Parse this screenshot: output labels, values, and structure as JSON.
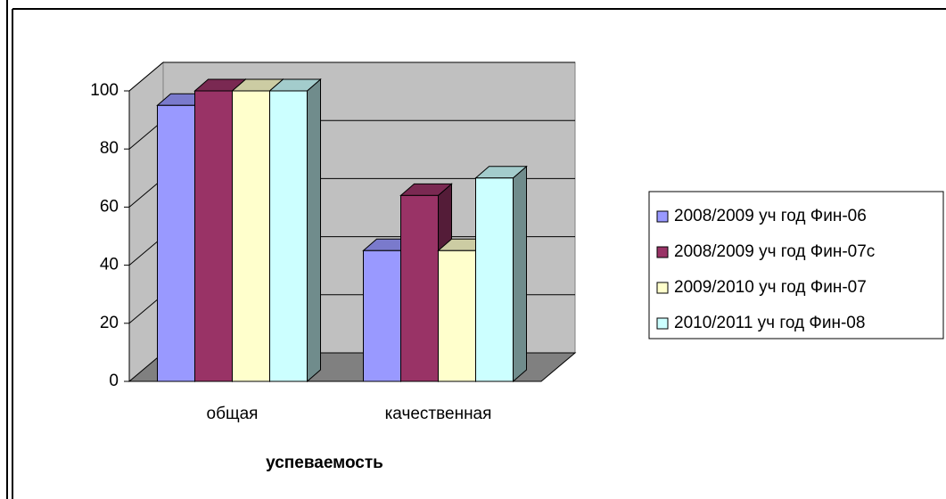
{
  "chart_data": {
    "type": "bar3d",
    "categories": [
      "общая",
      "качественная"
    ],
    "series": [
      {
        "name": "2008/2009 уч год Фин-06",
        "color": "#9999ff",
        "values": [
          95,
          45
        ]
      },
      {
        "name": "2008/2009 уч год Фин-07с",
        "color": "#993366",
        "values": [
          100,
          64
        ]
      },
      {
        "name": "2009/2010 уч год Фин-07",
        "color": "#ffffcc",
        "values": [
          100,
          45
        ]
      },
      {
        "name": "2010/2011 уч год Фин-08",
        "color": "#ccffff",
        "values": [
          100,
          70
        ]
      }
    ],
    "xlabel": "успеваемость",
    "ylim": [
      0,
      100
    ],
    "yticks": [
      0,
      20,
      40,
      60,
      80,
      100
    ],
    "grid": true,
    "legend": "right"
  }
}
